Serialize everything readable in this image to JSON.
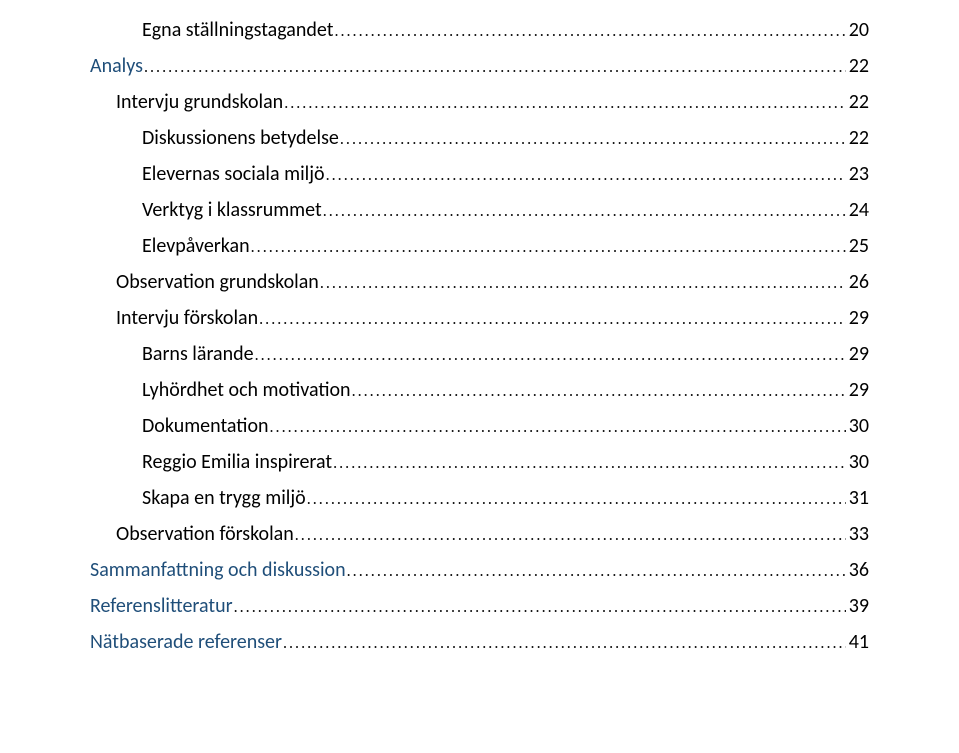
{
  "toc": [
    {
      "level": 3,
      "blue": false,
      "label": "Egna ställningstagandet",
      "page": "20"
    },
    {
      "level": 1,
      "blue": true,
      "label": "Analys",
      "page": "22"
    },
    {
      "level": 2,
      "blue": false,
      "label": "Intervju grundskolan",
      "page": "22"
    },
    {
      "level": 3,
      "blue": false,
      "label": "Diskussionens betydelse",
      "page": "22"
    },
    {
      "level": 3,
      "blue": false,
      "label": "Elevernas sociala miljö",
      "page": "23"
    },
    {
      "level": 3,
      "blue": false,
      "label": "Verktyg i klassrummet",
      "page": "24"
    },
    {
      "level": 3,
      "blue": false,
      "label": "Elevpåverkan",
      "page": "25"
    },
    {
      "level": 2,
      "blue": false,
      "label": "Observation grundskolan",
      "page": "26"
    },
    {
      "level": 2,
      "blue": false,
      "label": "Intervju förskolan",
      "page": "29"
    },
    {
      "level": 3,
      "blue": false,
      "label": "Barns lärande",
      "page": "29"
    },
    {
      "level": 3,
      "blue": false,
      "label": "Lyhördhet och motivation",
      "page": "29"
    },
    {
      "level": 3,
      "blue": false,
      "label": "Dokumentation",
      "page": "30"
    },
    {
      "level": 3,
      "blue": false,
      "label": "Reggio Emilia inspirerat",
      "page": "30"
    },
    {
      "level": 3,
      "blue": false,
      "label": "Skapa en trygg miljö",
      "page": "31"
    },
    {
      "level": 2,
      "blue": false,
      "label": "Observation förskolan",
      "page": "33"
    },
    {
      "level": 1,
      "blue": true,
      "label": "Sammanfattning och diskussion",
      "page": "36"
    },
    {
      "level": 1,
      "blue": true,
      "label": "Referenslitteratur",
      "page": "39"
    },
    {
      "level": 1,
      "blue": true,
      "label": "Nätbaserade referenser",
      "page": "41"
    }
  ],
  "colors": {
    "headingBlue": "#1F4E79",
    "bodyText": "#000000",
    "background": "#ffffff"
  },
  "typography": {
    "font_family": "Calibri",
    "entry_fontsize_pt": 15,
    "leader_char": "."
  }
}
